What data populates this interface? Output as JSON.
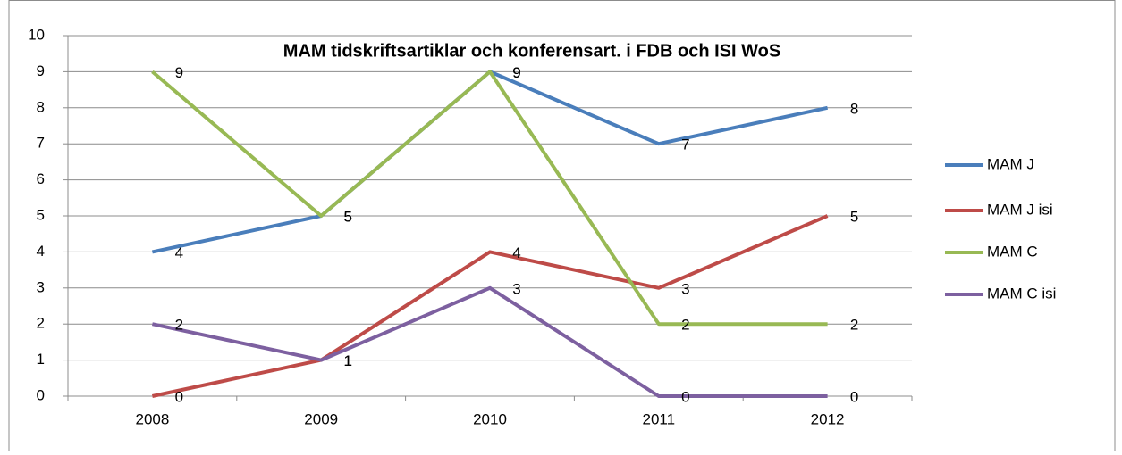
{
  "chart_data": {
    "type": "line",
    "title": "MAM tidskriftsartiklar och konferensart. i FDB och ISI WoS",
    "categories": [
      "2008",
      "2009",
      "2010",
      "2011",
      "2012"
    ],
    "series": [
      {
        "name": "MAM J",
        "color": "#4a7ebb",
        "values": [
          4,
          5,
          9,
          7,
          8
        ]
      },
      {
        "name": "MAM J isi",
        "color": "#be4b48",
        "values": [
          0,
          1,
          4,
          3,
          5
        ]
      },
      {
        "name": "MAM C",
        "color": "#98b954",
        "values": [
          9,
          5,
          9,
          2,
          2
        ]
      },
      {
        "name": "MAM C isi",
        "color": "#7d60a0",
        "values": [
          2,
          1,
          3,
          0,
          0
        ]
      }
    ],
    "ylim": [
      0,
      10
    ],
    "yticks": [
      0,
      1,
      2,
      3,
      4,
      5,
      6,
      7,
      8,
      9,
      10
    ],
    "grid": true,
    "legend": "right",
    "data_labels": true
  }
}
